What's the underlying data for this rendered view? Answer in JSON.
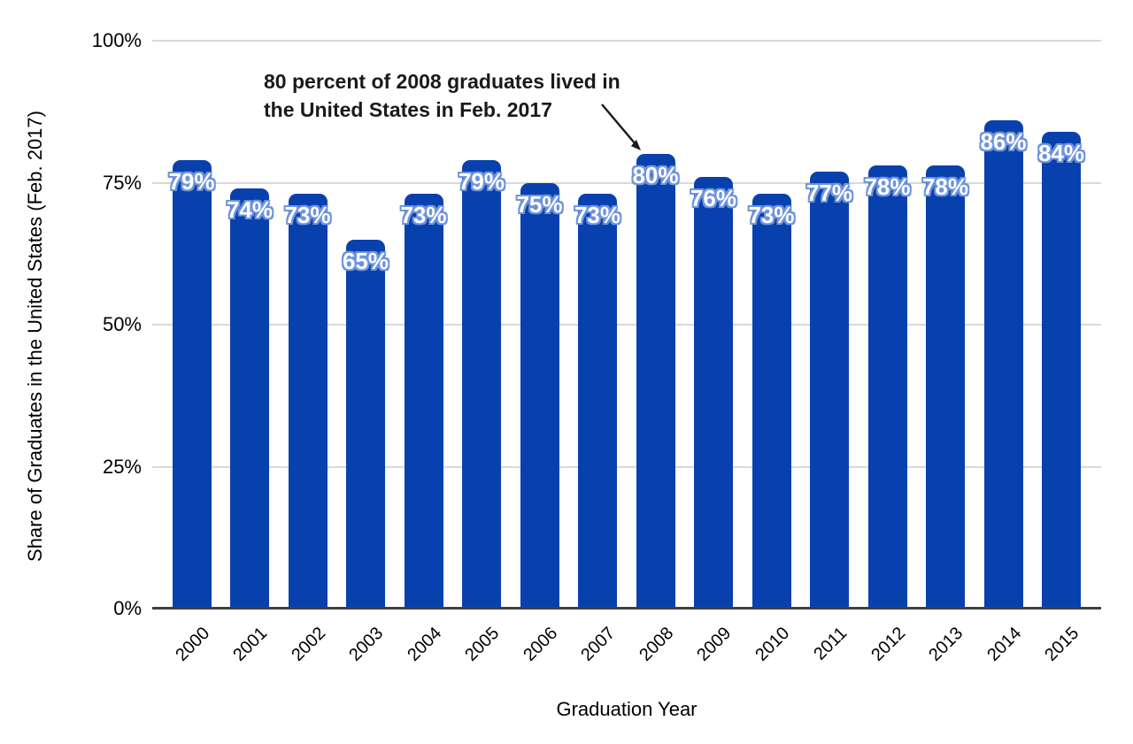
{
  "page": {
    "background": "#ffffff"
  },
  "chart_data": {
    "type": "bar",
    "title": "",
    "xlabel": "Graduation Year",
    "ylabel": "Share of Graduates in the United States (Feb. 2017)",
    "categories": [
      "2000",
      "2001",
      "2002",
      "2003",
      "2004",
      "2005",
      "2006",
      "2007",
      "2008",
      "2009",
      "2010",
      "2011",
      "2012",
      "2013",
      "2014",
      "2015"
    ],
    "values": [
      79,
      74,
      73,
      65,
      73,
      79,
      75,
      73,
      80,
      76,
      73,
      77,
      78,
      78,
      86,
      84
    ],
    "bar_labels": [
      "79%",
      "74%",
      "73%",
      "65%",
      "73%",
      "79%",
      "75%",
      "73%",
      "80%",
      "76%",
      "73%",
      "77%",
      "78%",
      "78%",
      "86%",
      "84%"
    ],
    "ylim": [
      0,
      100
    ],
    "yticks": {
      "values": [
        0,
        25,
        50,
        75,
        100
      ],
      "labels": [
        "0%",
        "25%",
        "50%",
        "75%",
        "100%"
      ]
    },
    "grid": "horizontal",
    "legend": "none",
    "annotation": {
      "text_lines": [
        "80 percent of 2008 graduates lived in",
        "the United States in Feb. 2017"
      ],
      "target_category": "2008",
      "target_value_label": "80%"
    }
  },
  "colors": {
    "bar": "#0841ae",
    "bar_label_text": "#ffffff",
    "bar_label_outline": "#6f94de",
    "gridline": "#d9d9d9",
    "axis_line": "#3f3f3f",
    "annotation_text": "#1a1a1a",
    "tick_text": "#000000",
    "arrow": "#1a1a1a"
  }
}
